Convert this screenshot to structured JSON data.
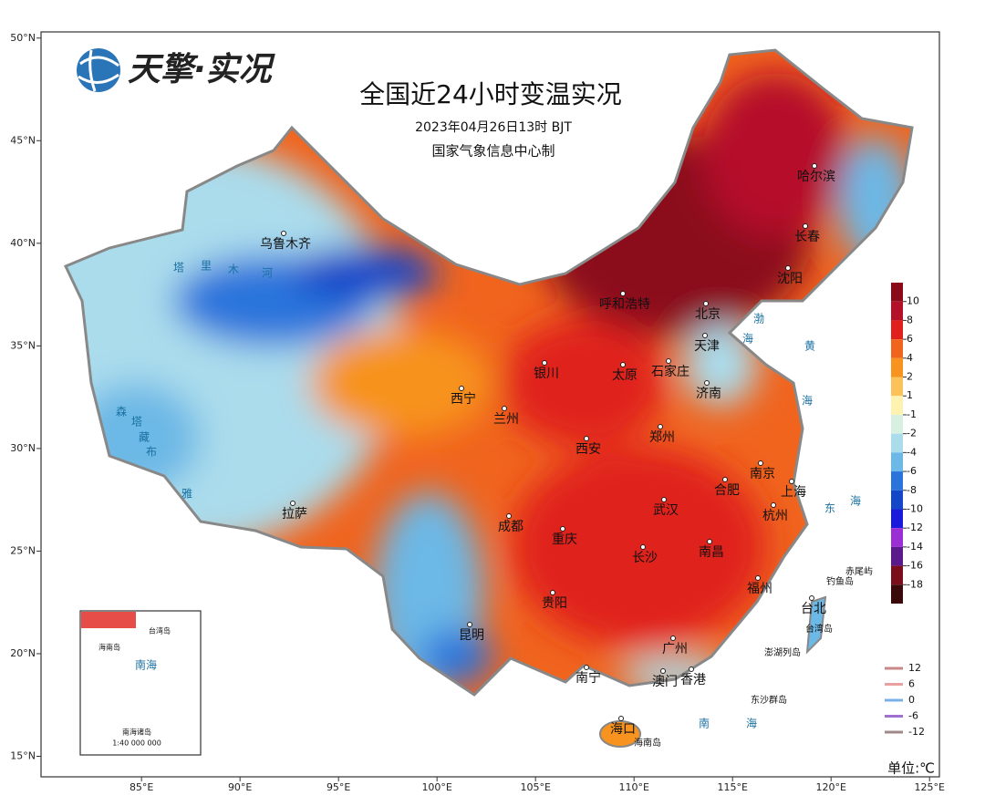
{
  "header": {
    "logo": "天擎·实况",
    "title": "全国近24小时变温实况",
    "time": "2023年04月26日13时  BJT",
    "issuer": "国家气象信息中心制"
  },
  "map": {
    "xlim": [
      79.9,
      125.5
    ],
    "ylim": [
      14.0,
      50.3
    ],
    "xticks": [
      {
        "value": 85,
        "label": "85°E"
      },
      {
        "value": 90,
        "label": "90°E"
      },
      {
        "value": 95,
        "label": "95°E"
      },
      {
        "value": 100,
        "label": "100°E"
      },
      {
        "value": 105,
        "label": "105°E"
      },
      {
        "value": 110,
        "label": "110°E"
      },
      {
        "value": 115,
        "label": "115°E"
      },
      {
        "value": 120,
        "label": "120°E"
      },
      {
        "value": 125,
        "label": "125°E"
      }
    ],
    "yticks": [
      {
        "value": 15,
        "label": "15°N"
      },
      {
        "value": 20,
        "label": "20°N"
      },
      {
        "value": 25,
        "label": "25°N"
      },
      {
        "value": 30,
        "label": "30°N"
      },
      {
        "value": 35,
        "label": "35°N"
      },
      {
        "value": 40,
        "label": "40°N"
      },
      {
        "value": 45,
        "label": "45°N"
      },
      {
        "value": 50,
        "label": "50°N"
      }
    ]
  },
  "colorbar": {
    "ticks": [
      10,
      8,
      6,
      4,
      2,
      1,
      -1,
      -2,
      -4,
      -6,
      -8,
      -10,
      -12,
      -14,
      -16,
      -18
    ],
    "colors": [
      "#8b0a1a",
      "#b5102a",
      "#e0201c",
      "#f0641e",
      "#f7931e",
      "#fbc25a",
      "#fdf2b0",
      "#d8f0e0",
      "#aadcec",
      "#6cb8e6",
      "#2a74dc",
      "#1446c8",
      "#1a1adc",
      "#9b2fd6",
      "#5a1a8c",
      "#7a0e1a",
      "#3a0a0a"
    ]
  },
  "line_legend": {
    "values": [
      12,
      6,
      0,
      -6,
      -12
    ],
    "colors": [
      "#c88888",
      "#e8a0a0",
      "#7ab0e8",
      "#a070d0",
      "#a08888"
    ]
  },
  "unit": "单位:℃",
  "places": [
    "乌鲁木齐",
    "塔",
    "里",
    "木",
    "河",
    "呼和浩特",
    "北京",
    "天津",
    "银川",
    "太原",
    "石家庄",
    "济南",
    "西宁",
    "兰州",
    "郑州",
    "西安",
    "南京",
    "上海",
    "合肥",
    "武汉",
    "杭州",
    "成都",
    "重庆",
    "长沙",
    "南昌",
    "福州",
    "贵阳",
    "台北",
    "昆明",
    "南宁",
    "广州",
    "澳门",
    "香港",
    "海口",
    "拉萨",
    "沈阳",
    "长春",
    "哈尔滨",
    "渤",
    "海",
    "黄",
    "海",
    "东",
    "海",
    "南",
    "海",
    "赤尾屿",
    "钓鱼岛",
    "台湾岛",
    "澎湖列岛",
    "东沙群岛",
    "海南岛",
    "森",
    "塔",
    "藏",
    "布",
    "雅"
  ],
  "inset": {
    "labels": [
      "台湾岛",
      "海南岛",
      "南海",
      "南海诸岛",
      "1:40 000 000"
    ]
  }
}
